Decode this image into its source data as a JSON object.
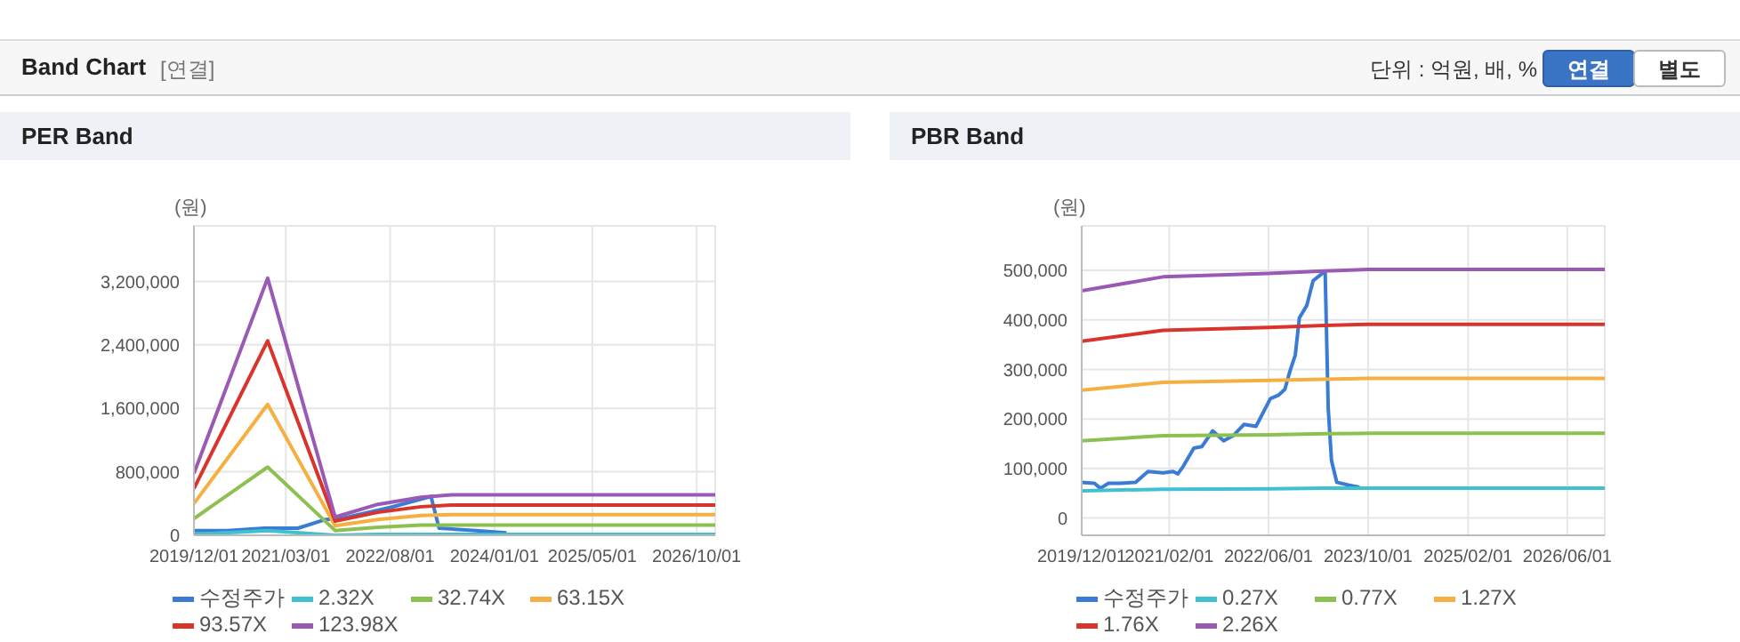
{
  "chart_data": [
    {
      "type": "line",
      "title": "PER Band",
      "ylabel": "(원)",
      "annotations": [
        "Band Chart",
        "[연결]",
        "단위 : 억원, 배, %",
        "연결",
        "별도"
      ],
      "xlim": [
        "2019-12-01",
        "2027-01-01"
      ],
      "xticks": [
        {
          "value": "2019-12-01",
          "label": "2019/12/01"
        },
        {
          "value": "2021-03-01",
          "label": "2021/03/01"
        },
        {
          "value": "2022-08-01",
          "label": "2022/08/01"
        },
        {
          "value": "2024-01-01",
          "label": "2024/01/01"
        },
        {
          "value": "2025-05-01",
          "label": "2025/05/01"
        },
        {
          "value": "2026-10-01",
          "label": "2026/10/01"
        }
      ],
      "ylim": [
        0,
        3900000
      ],
      "yticks": [
        0,
        {
          "value": 800000,
          "label": "800,000"
        },
        {
          "value": 1600000,
          "label": "1,600,000"
        },
        {
          "value": 2400000,
          "label": "2,400,000"
        },
        {
          "value": 3200000,
          "label": "3,200,000"
        }
      ],
      "grid": true,
      "legend": "bottom",
      "marker": "none",
      "line_style": "solid",
      "x": [
        "2019-12-01",
        "2020-12-01",
        "2021-11-01",
        "2022-06-01",
        "2023-01-01",
        "2023-06-01",
        "2027-01-01"
      ],
      "series": [
        {
          "name": "수정주가",
          "color": "#3a7bd5",
          "x": [
            "2019-12-01",
            "2020-05-15",
            "2020-11-15",
            "2021-05-01",
            "2021-09-15",
            "2021-12-15",
            "2022-08-01",
            "2023-02-20",
            "2023-04-01",
            "2023-10-01",
            "2024-03-01"
          ],
          "values": [
            60000,
            60000,
            90000,
            90000,
            200000,
            220000,
            350000,
            490000,
            90000,
            60000,
            30000
          ]
        },
        {
          "name": "2.32X",
          "color": "#3fc1d0",
          "values": [
            10000,
            60000,
            0,
            10000,
            10000,
            10000,
            10000
          ]
        },
        {
          "name": "32.74X",
          "color": "#8cc152",
          "values": [
            210000,
            860000,
            60000,
            100000,
            130000,
            130000,
            130000
          ]
        },
        {
          "name": "63.15X",
          "color": "#f5b041",
          "values": [
            400000,
            1650000,
            120000,
            200000,
            250000,
            260000,
            260000
          ]
        },
        {
          "name": "93.57X",
          "color": "#d9342b",
          "values": [
            590000,
            2450000,
            180000,
            290000,
            360000,
            380000,
            380000
          ]
        },
        {
          "name": "123.98X",
          "color": "#9b59b6",
          "values": [
            780000,
            3240000,
            230000,
            390000,
            480000,
            510000,
            510000
          ]
        }
      ]
    },
    {
      "type": "line",
      "title": "PBR Band",
      "ylabel": "(원)",
      "xlim": [
        "2019-12-01",
        "2026-12-01"
      ],
      "xticks": [
        {
          "value": "2019-12-01",
          "label": "2019/12/01"
        },
        {
          "value": "2021-02-01",
          "label": "2021/02/01"
        },
        {
          "value": "2022-06-01",
          "label": "2022/06/01"
        },
        {
          "value": "2023-10-01",
          "label": "2023/10/01"
        },
        {
          "value": "2025-02-01",
          "label": "2025/02/01"
        },
        {
          "value": "2026-06-01",
          "label": "2026/06/01"
        }
      ],
      "ylim": [
        -35000,
        590000
      ],
      "yticks": [
        0,
        {
          "value": 100000,
          "label": "100,000"
        },
        {
          "value": 200000,
          "label": "200,000"
        },
        {
          "value": 300000,
          "label": "300,000"
        },
        {
          "value": 400000,
          "label": "400,000"
        },
        {
          "value": 500000,
          "label": "500,000"
        }
      ],
      "grid": true,
      "legend": "bottom",
      "marker": "none",
      "line_style": "solid",
      "x": [
        "2019-12-01",
        "2021-01-01",
        "2022-06-01",
        "2023-03-01",
        "2023-10-01",
        "2026-12-01"
      ],
      "series": [
        {
          "name": "수정주가",
          "color": "#3a7bd5",
          "x": [
            "2019-12-01",
            "2020-02-01",
            "2020-03-01",
            "2020-04-10",
            "2020-06-05",
            "2020-08-20",
            "2020-10-20",
            "2021-01-01",
            "2021-02-20",
            "2021-03-15",
            "2021-04-10",
            "2021-06-01",
            "2021-07-10",
            "2021-09-01",
            "2021-10-25",
            "2021-12-10",
            "2022-02-01",
            "2022-04-01",
            "2022-06-10",
            "2022-07-20",
            "2022-08-20",
            "2022-09-15",
            "2022-10-10",
            "2022-10-30",
            "2022-12-05",
            "2023-01-05",
            "2023-02-10",
            "2023-03-05",
            "2023-03-20",
            "2023-04-05",
            "2023-05-01",
            "2023-07-01",
            "2023-08-20"
          ],
          "values": [
            72000,
            70000,
            60000,
            70000,
            70000,
            72000,
            94000,
            91000,
            94000,
            89000,
            104000,
            141000,
            144000,
            176000,
            156000,
            166000,
            189000,
            185000,
            241000,
            248000,
            260000,
            298000,
            329000,
            404000,
            429000,
            479000,
            491000,
            498000,
            222000,
            116000,
            72000,
            66000,
            62000
          ]
        },
        {
          "name": "0.27X",
          "color": "#3fc1d0",
          "values": [
            55000,
            58000,
            59000,
            60000,
            60000,
            60000
          ]
        },
        {
          "name": "0.77X",
          "color": "#8cc152",
          "values": [
            156000,
            166000,
            168000,
            170000,
            171000,
            171000
          ]
        },
        {
          "name": "1.27X",
          "color": "#f5b041",
          "values": [
            258000,
            274000,
            278000,
            280000,
            282000,
            282000
          ]
        },
        {
          "name": "1.76X",
          "color": "#d9342b",
          "values": [
            357000,
            379000,
            385000,
            389000,
            391000,
            391000
          ]
        },
        {
          "name": "2.26X",
          "color": "#9b59b6",
          "values": [
            459000,
            487000,
            494000,
            499000,
            502000,
            502000
          ]
        }
      ]
    }
  ]
}
